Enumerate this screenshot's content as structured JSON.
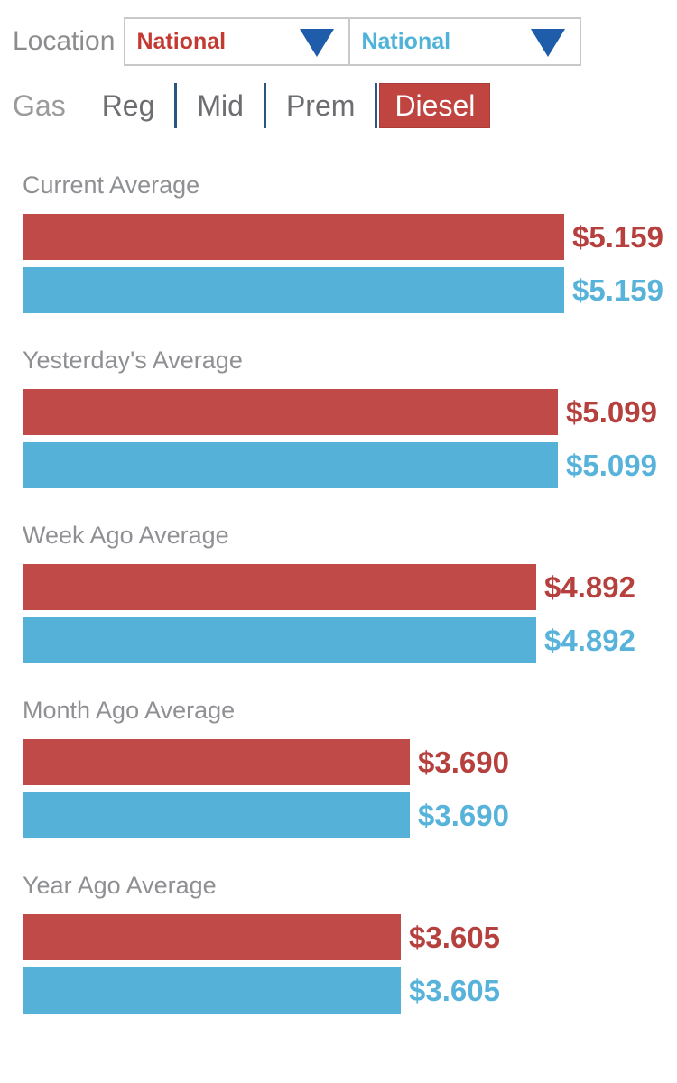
{
  "location": {
    "label": "Location",
    "dropdowns": [
      {
        "value": "National",
        "series": "red"
      },
      {
        "value": "National",
        "series": "blue"
      }
    ]
  },
  "fuel": {
    "label": "Gas",
    "tabs": [
      {
        "label": "Reg",
        "active": false
      },
      {
        "label": "Mid",
        "active": false
      },
      {
        "label": "Prem",
        "active": false
      },
      {
        "label": "Diesel",
        "active": true
      }
    ]
  },
  "sections": [
    {
      "title": "Current Average",
      "bars": [
        {
          "series": "red",
          "value": 5.159,
          "label": "$5.159"
        },
        {
          "series": "blue",
          "value": 5.159,
          "label": "$5.159"
        }
      ]
    },
    {
      "title": "Yesterday's Average",
      "bars": [
        {
          "series": "red",
          "value": 5.099,
          "label": "$5.099"
        },
        {
          "series": "blue",
          "value": 5.099,
          "label": "$5.099"
        }
      ]
    },
    {
      "title": "Week Ago Average",
      "bars": [
        {
          "series": "red",
          "value": 4.892,
          "label": "$4.892"
        },
        {
          "series": "blue",
          "value": 4.892,
          "label": "$4.892"
        }
      ]
    },
    {
      "title": "Month Ago Average",
      "bars": [
        {
          "series": "red",
          "value": 3.69,
          "label": "$3.690"
        },
        {
          "series": "blue",
          "value": 3.69,
          "label": "$3.690"
        }
      ]
    },
    {
      "title": "Year Ago Average",
      "bars": [
        {
          "series": "red",
          "value": 3.605,
          "label": "$3.605"
        },
        {
          "series": "blue",
          "value": 3.605,
          "label": "$3.605"
        }
      ]
    }
  ],
  "colors": {
    "bar_red": "#bf4a47",
    "bar_blue": "#55b1d8",
    "label_red": "#b6403d",
    "label_blue": "#57b3da",
    "dropdown_text_red": "#c23a31",
    "dropdown_text_blue": "#4fb3d9",
    "triangle_blue": "#1f5ca9",
    "diesel_active_bg": "#c0443f",
    "tab_divider_navy": "#29567f"
  },
  "chart_data": {
    "type": "bar",
    "orientation": "horizontal",
    "categories": [
      "Current Average",
      "Yesterday's Average",
      "Week Ago Average",
      "Month Ago Average",
      "Year Ago Average"
    ],
    "series": [
      {
        "name": "National (red)",
        "values": [
          5.159,
          5.099,
          4.892,
          3.69,
          3.605
        ]
      },
      {
        "name": "National (blue)",
        "values": [
          5.159,
          5.099,
          4.892,
          3.69,
          3.605
        ]
      }
    ],
    "value_labels": [
      [
        "$5.159",
        "$5.159"
      ],
      [
        "$5.099",
        "$5.099"
      ],
      [
        "$4.892",
        "$4.892"
      ],
      [
        "$3.690",
        "$3.690"
      ],
      [
        "$3.605",
        "$3.605"
      ]
    ],
    "unit": "USD per gallon",
    "xlim": [
      0,
      5.159
    ],
    "grid": false,
    "legend_position": "none"
  }
}
